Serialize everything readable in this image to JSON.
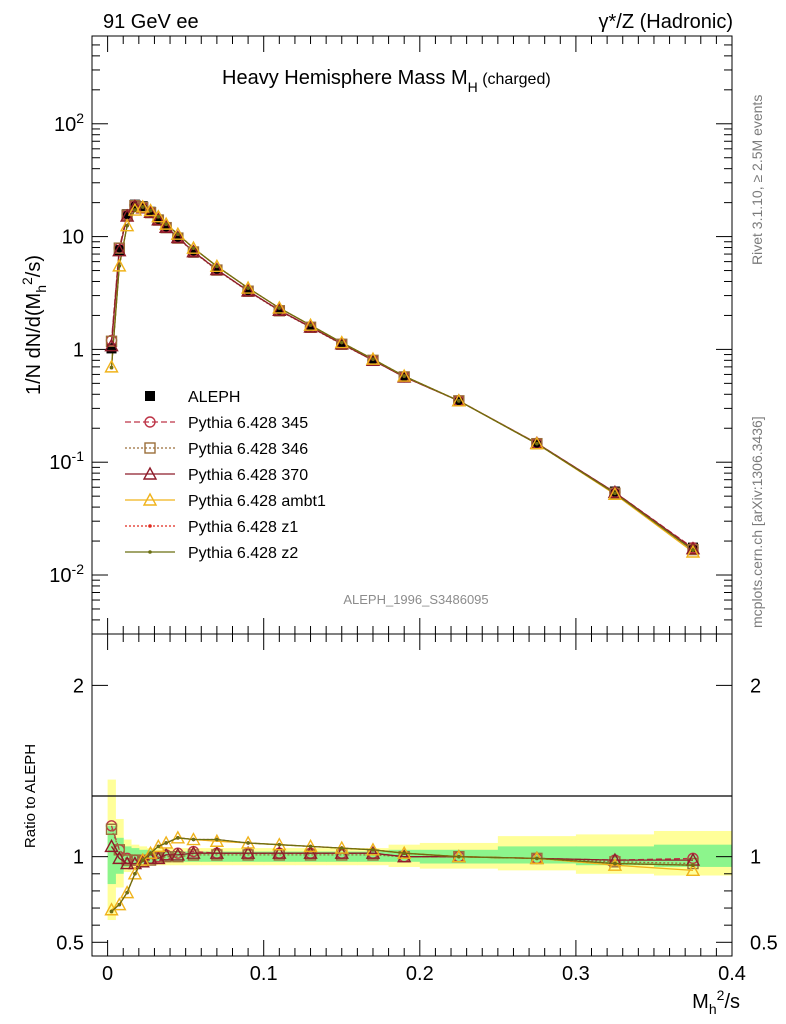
{
  "header": {
    "left": "91 GeV ee",
    "right": "γ*/Z (Hadronic)"
  },
  "side": {
    "rivet": "Rivet 3.1.10, ≥ 2.5M events",
    "mcplots": "mcplots.cern.ch [arXiv:1306.3436]"
  },
  "watermark": "ALEPH_1996_S3486095",
  "chart_data": [
    {
      "type": "line",
      "title": "Heavy Hemisphere Mass M_H (charged)",
      "ylabel": "1/N dN/d(M_h^2/s)",
      "yscale": "log",
      "ylim": [
        0.003,
        600
      ],
      "xlim": [
        -0.01,
        0.4
      ],
      "yticks": [
        "10^-2",
        "10^-1",
        "1",
        "10",
        "10^2"
      ],
      "legend_position": "middle-left",
      "x": [
        0.0025,
        0.0075,
        0.0125,
        0.0175,
        0.0225,
        0.0275,
        0.0325,
        0.0375,
        0.045,
        0.055,
        0.07,
        0.09,
        0.11,
        0.13,
        0.15,
        0.17,
        0.19,
        0.225,
        0.275,
        0.325,
        0.375
      ],
      "series": [
        {
          "name": "ALEPH",
          "color": "#000000",
          "marker": "square",
          "values": [
            1.02,
            7.6,
            15.8,
            19.2,
            18.6,
            16.6,
            14.2,
            12.0,
            9.7,
            7.2,
            5.0,
            3.25,
            2.18,
            1.55,
            1.1,
            0.79,
            0.57,
            0.35,
            0.148,
            0.055,
            0.0175
          ]
        },
        {
          "name": "Pythia 6.428 345",
          "color": "#bd3447",
          "marker": "circle",
          "dash": "6,3",
          "values": [
            1.2,
            7.9,
            15.6,
            18.9,
            18.2,
            16.4,
            14.1,
            12.1,
            9.8,
            7.4,
            5.1,
            3.3,
            2.22,
            1.58,
            1.12,
            0.8,
            0.57,
            0.35,
            0.147,
            0.054,
            0.0174
          ]
        },
        {
          "name": "Pythia 6.428 346",
          "color": "#9b6e3a",
          "marker": "square-open",
          "dash": "2,2",
          "values": [
            1.18,
            7.9,
            15.5,
            18.8,
            18.1,
            16.3,
            14.0,
            12.0,
            9.7,
            7.3,
            5.05,
            3.28,
            2.2,
            1.57,
            1.11,
            0.8,
            0.57,
            0.35,
            0.146,
            0.053,
            0.0168
          ]
        },
        {
          "name": "Pythia 6.428 370",
          "color": "#8e1c2a",
          "marker": "triangle",
          "dash": "",
          "values": [
            1.08,
            7.5,
            15.2,
            18.5,
            18.0,
            16.4,
            14.1,
            12.1,
            9.8,
            7.35,
            5.1,
            3.3,
            2.22,
            1.58,
            1.12,
            0.8,
            0.57,
            0.35,
            0.147,
            0.054,
            0.0171
          ]
        },
        {
          "name": "Pythia 6.428 ambt1",
          "color": "#f0b31b",
          "marker": "triangle",
          "dash": "",
          "values": [
            0.7,
            5.5,
            12.5,
            17.2,
            18.3,
            17.0,
            15.0,
            12.9,
            10.5,
            7.9,
            5.45,
            3.5,
            2.33,
            1.64,
            1.15,
            0.82,
            0.58,
            0.35,
            0.146,
            0.052,
            0.016
          ]
        },
        {
          "name": "Pythia 6.428 z1",
          "color": "#e0291d",
          "marker": "dot",
          "dash": "2,2",
          "values": [
            0.69,
            5.5,
            12.5,
            17.2,
            18.3,
            17.0,
            15.0,
            12.9,
            10.5,
            7.9,
            5.45,
            3.5,
            2.33,
            1.64,
            1.15,
            0.82,
            0.58,
            0.35,
            0.146,
            0.053,
            0.0166
          ]
        },
        {
          "name": "Pythia 6.428 z2",
          "color": "#6b6f12",
          "marker": "dot",
          "dash": "",
          "values": [
            0.69,
            5.5,
            12.5,
            17.2,
            18.3,
            17.0,
            15.0,
            12.9,
            10.5,
            7.9,
            5.45,
            3.5,
            2.33,
            1.64,
            1.15,
            0.82,
            0.58,
            0.35,
            0.146,
            0.053,
            0.0166
          ]
        }
      ]
    },
    {
      "type": "line",
      "xlabel": "M_h^2/s",
      "ylabel": "Ratio to ALEPH",
      "ylim": [
        0.42,
        2.3
      ],
      "xlim": [
        -0.01,
        0.4
      ],
      "xticks": [
        "0",
        "0.1",
        "0.2",
        "0.3",
        "0.4"
      ],
      "yticks": [
        "0.5",
        "1",
        "2"
      ],
      "x": [
        0.0025,
        0.0075,
        0.0125,
        0.0175,
        0.0225,
        0.0275,
        0.0325,
        0.0375,
        0.045,
        0.055,
        0.07,
        0.09,
        0.11,
        0.13,
        0.15,
        0.17,
        0.19,
        0.225,
        0.275,
        0.325,
        0.375
      ],
      "bins": [
        [
          0,
          0.005
        ],
        [
          0.005,
          0.01
        ],
        [
          0.01,
          0.015
        ],
        [
          0.015,
          0.02
        ],
        [
          0.02,
          0.025
        ],
        [
          0.025,
          0.03
        ],
        [
          0.03,
          0.035
        ],
        [
          0.035,
          0.04
        ],
        [
          0.04,
          0.05
        ],
        [
          0.05,
          0.06
        ],
        [
          0.06,
          0.08
        ],
        [
          0.08,
          0.1
        ],
        [
          0.1,
          0.12
        ],
        [
          0.12,
          0.14
        ],
        [
          0.14,
          0.16
        ],
        [
          0.16,
          0.18
        ],
        [
          0.18,
          0.2
        ],
        [
          0.2,
          0.25
        ],
        [
          0.25,
          0.3
        ],
        [
          0.3,
          0.35
        ],
        [
          0.35,
          0.4
        ]
      ],
      "band_stat": [
        [
          0.84,
          1.18
        ],
        [
          0.9,
          1.11
        ],
        [
          0.94,
          1.06
        ],
        [
          0.95,
          1.05
        ],
        [
          0.96,
          1.04
        ],
        [
          0.96,
          1.04
        ],
        [
          0.97,
          1.03
        ],
        [
          0.97,
          1.03
        ],
        [
          0.97,
          1.03
        ],
        [
          0.97,
          1.03
        ],
        [
          0.97,
          1.03
        ],
        [
          0.97,
          1.03
        ],
        [
          0.97,
          1.03
        ],
        [
          0.97,
          1.03
        ],
        [
          0.97,
          1.03
        ],
        [
          0.97,
          1.03
        ],
        [
          0.97,
          1.04
        ],
        [
          0.96,
          1.04
        ],
        [
          0.96,
          1.06
        ],
        [
          0.95,
          1.06
        ],
        [
          0.94,
          1.07
        ]
      ],
      "band_total": [
        [
          0.63,
          1.45
        ],
        [
          0.82,
          1.22
        ],
        [
          0.91,
          1.1
        ],
        [
          0.93,
          1.07
        ],
        [
          0.94,
          1.06
        ],
        [
          0.95,
          1.05
        ],
        [
          0.95,
          1.05
        ],
        [
          0.95,
          1.05
        ],
        [
          0.95,
          1.05
        ],
        [
          0.95,
          1.05
        ],
        [
          0.95,
          1.05
        ],
        [
          0.95,
          1.05
        ],
        [
          0.95,
          1.05
        ],
        [
          0.95,
          1.05
        ],
        [
          0.95,
          1.05
        ],
        [
          0.95,
          1.05
        ],
        [
          0.94,
          1.07
        ],
        [
          0.93,
          1.08
        ],
        [
          0.92,
          1.12
        ],
        [
          0.9,
          1.13
        ],
        [
          0.89,
          1.15
        ]
      ],
      "series": [
        {
          "name": "Pythia 6.428 345",
          "values": [
            1.18,
            1.04,
            0.99,
            0.98,
            0.98,
            0.99,
            1.0,
            1.01,
            1.02,
            1.03,
            1.02,
            1.02,
            1.02,
            1.02,
            1.02,
            1.02,
            1.0,
            1.0,
            0.99,
            0.98,
            0.99
          ]
        },
        {
          "name": "Pythia 6.428 346",
          "values": [
            1.16,
            1.04,
            0.98,
            0.98,
            0.97,
            0.98,
            0.99,
            1.0,
            1.0,
            1.01,
            1.01,
            1.01,
            1.01,
            1.01,
            1.01,
            1.01,
            1.0,
            1.0,
            0.99,
            0.97,
            0.96
          ]
        },
        {
          "name": "Pythia 6.428 370",
          "values": [
            1.06,
            0.99,
            0.96,
            0.96,
            0.97,
            0.99,
            0.99,
            1.01,
            1.01,
            1.02,
            1.02,
            1.02,
            1.02,
            1.02,
            1.02,
            1.02,
            1.0,
            1.0,
            0.99,
            0.98,
            0.98
          ]
        },
        {
          "name": "Pythia 6.428 ambt1",
          "values": [
            0.69,
            0.72,
            0.79,
            0.9,
            0.98,
            1.02,
            1.06,
            1.08,
            1.11,
            1.1,
            1.09,
            1.08,
            1.07,
            1.06,
            1.05,
            1.04,
            1.02,
            1.0,
            0.99,
            0.95,
            0.92
          ]
        },
        {
          "name": "Pythia 6.428 z1",
          "values": [
            0.68,
            0.72,
            0.79,
            0.9,
            0.98,
            1.02,
            1.06,
            1.08,
            1.11,
            1.1,
            1.1,
            1.08,
            1.07,
            1.06,
            1.05,
            1.04,
            1.02,
            1.0,
            0.99,
            0.96,
            0.95
          ]
        },
        {
          "name": "Pythia 6.428 z2",
          "values": [
            0.68,
            0.72,
            0.79,
            0.9,
            0.98,
            1.02,
            1.06,
            1.08,
            1.11,
            1.1,
            1.1,
            1.08,
            1.07,
            1.06,
            1.05,
            1.04,
            1.02,
            1.0,
            0.99,
            0.96,
            0.95
          ]
        }
      ]
    }
  ]
}
